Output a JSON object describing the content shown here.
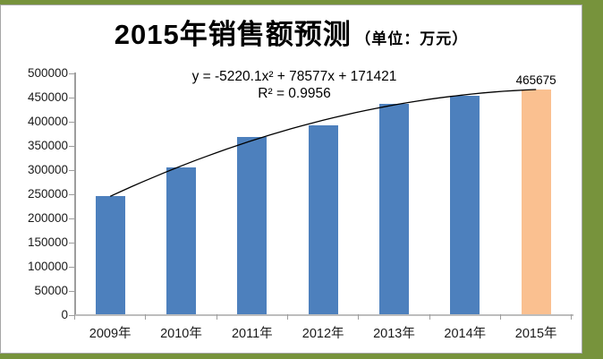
{
  "window": {
    "background_color": "#77933C",
    "panel_background": "#FFFFFF",
    "panel_border_color": "#A6A6A6"
  },
  "title": {
    "main": "2015年销售额预测",
    "unit": "（单位：万元）"
  },
  "annotations": {
    "equation_line1": "y = -5220.1x² + 78577x + 171421",
    "equation_line2": "R² = 0.9956",
    "forecast_label": "465675"
  },
  "chart_data": {
    "type": "bar",
    "title": "2015年销售额预测（单位：万元）",
    "categories": [
      "2009年",
      "2010年",
      "2011年",
      "2012年",
      "2013年",
      "2014年",
      "2015年"
    ],
    "values": [
      245000,
      305000,
      368000,
      392000,
      437000,
      453000,
      465675
    ],
    "bar_colors": [
      "#4D80BD",
      "#4D80BD",
      "#4D80BD",
      "#4D80BD",
      "#4D80BD",
      "#4D80BD",
      "#FAC090"
    ],
    "highlight_category": "2015年",
    "data_labels": [
      {
        "category": "2015年",
        "text": "465675"
      }
    ],
    "xlabel": "",
    "ylabel": "",
    "ylim": [
      0,
      500000
    ],
    "ytick_step": 50000,
    "yticks": [
      0,
      50000,
      100000,
      150000,
      200000,
      250000,
      300000,
      350000,
      400000,
      450000,
      500000
    ],
    "grid": false,
    "legend": "none",
    "trendline": {
      "type": "polynomial",
      "order": 2,
      "coefficients": {
        "a": -5220.1,
        "b": 78577,
        "c": 171421
      },
      "r_squared": 0.9956,
      "color": "#000000",
      "equation": "y = -5220.1x² + 78577x + 171421",
      "r2_label": "R² = 0.9956"
    }
  }
}
